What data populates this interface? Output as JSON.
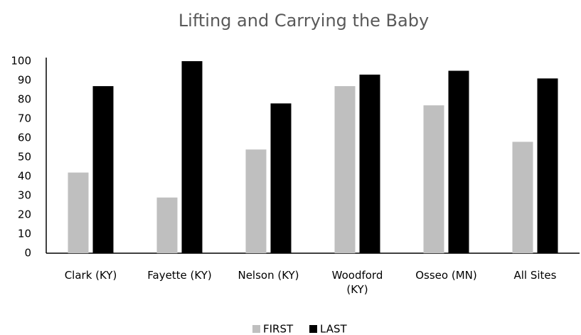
{
  "chart_data": {
    "type": "bar",
    "title": "Lifting and Carrying the Baby",
    "categories": [
      "Clark (KY)",
      "Fayette (KY)",
      "Nelson (KY)",
      "Woodford (KY)",
      "Osseo (MN)",
      "All Sites"
    ],
    "series": [
      {
        "name": "FIRST",
        "color": "#bfbfbf",
        "values": [
          42,
          29,
          54,
          87,
          77,
          58
        ]
      },
      {
        "name": "LAST",
        "color": "#000000",
        "values": [
          87,
          100,
          78,
          93,
          95,
          91
        ]
      }
    ],
    "ylim": [
      0,
      100
    ],
    "yticks": [
      0,
      10,
      20,
      30,
      40,
      50,
      60,
      70,
      80,
      90,
      100
    ],
    "grid": false,
    "legend": "bottom"
  }
}
